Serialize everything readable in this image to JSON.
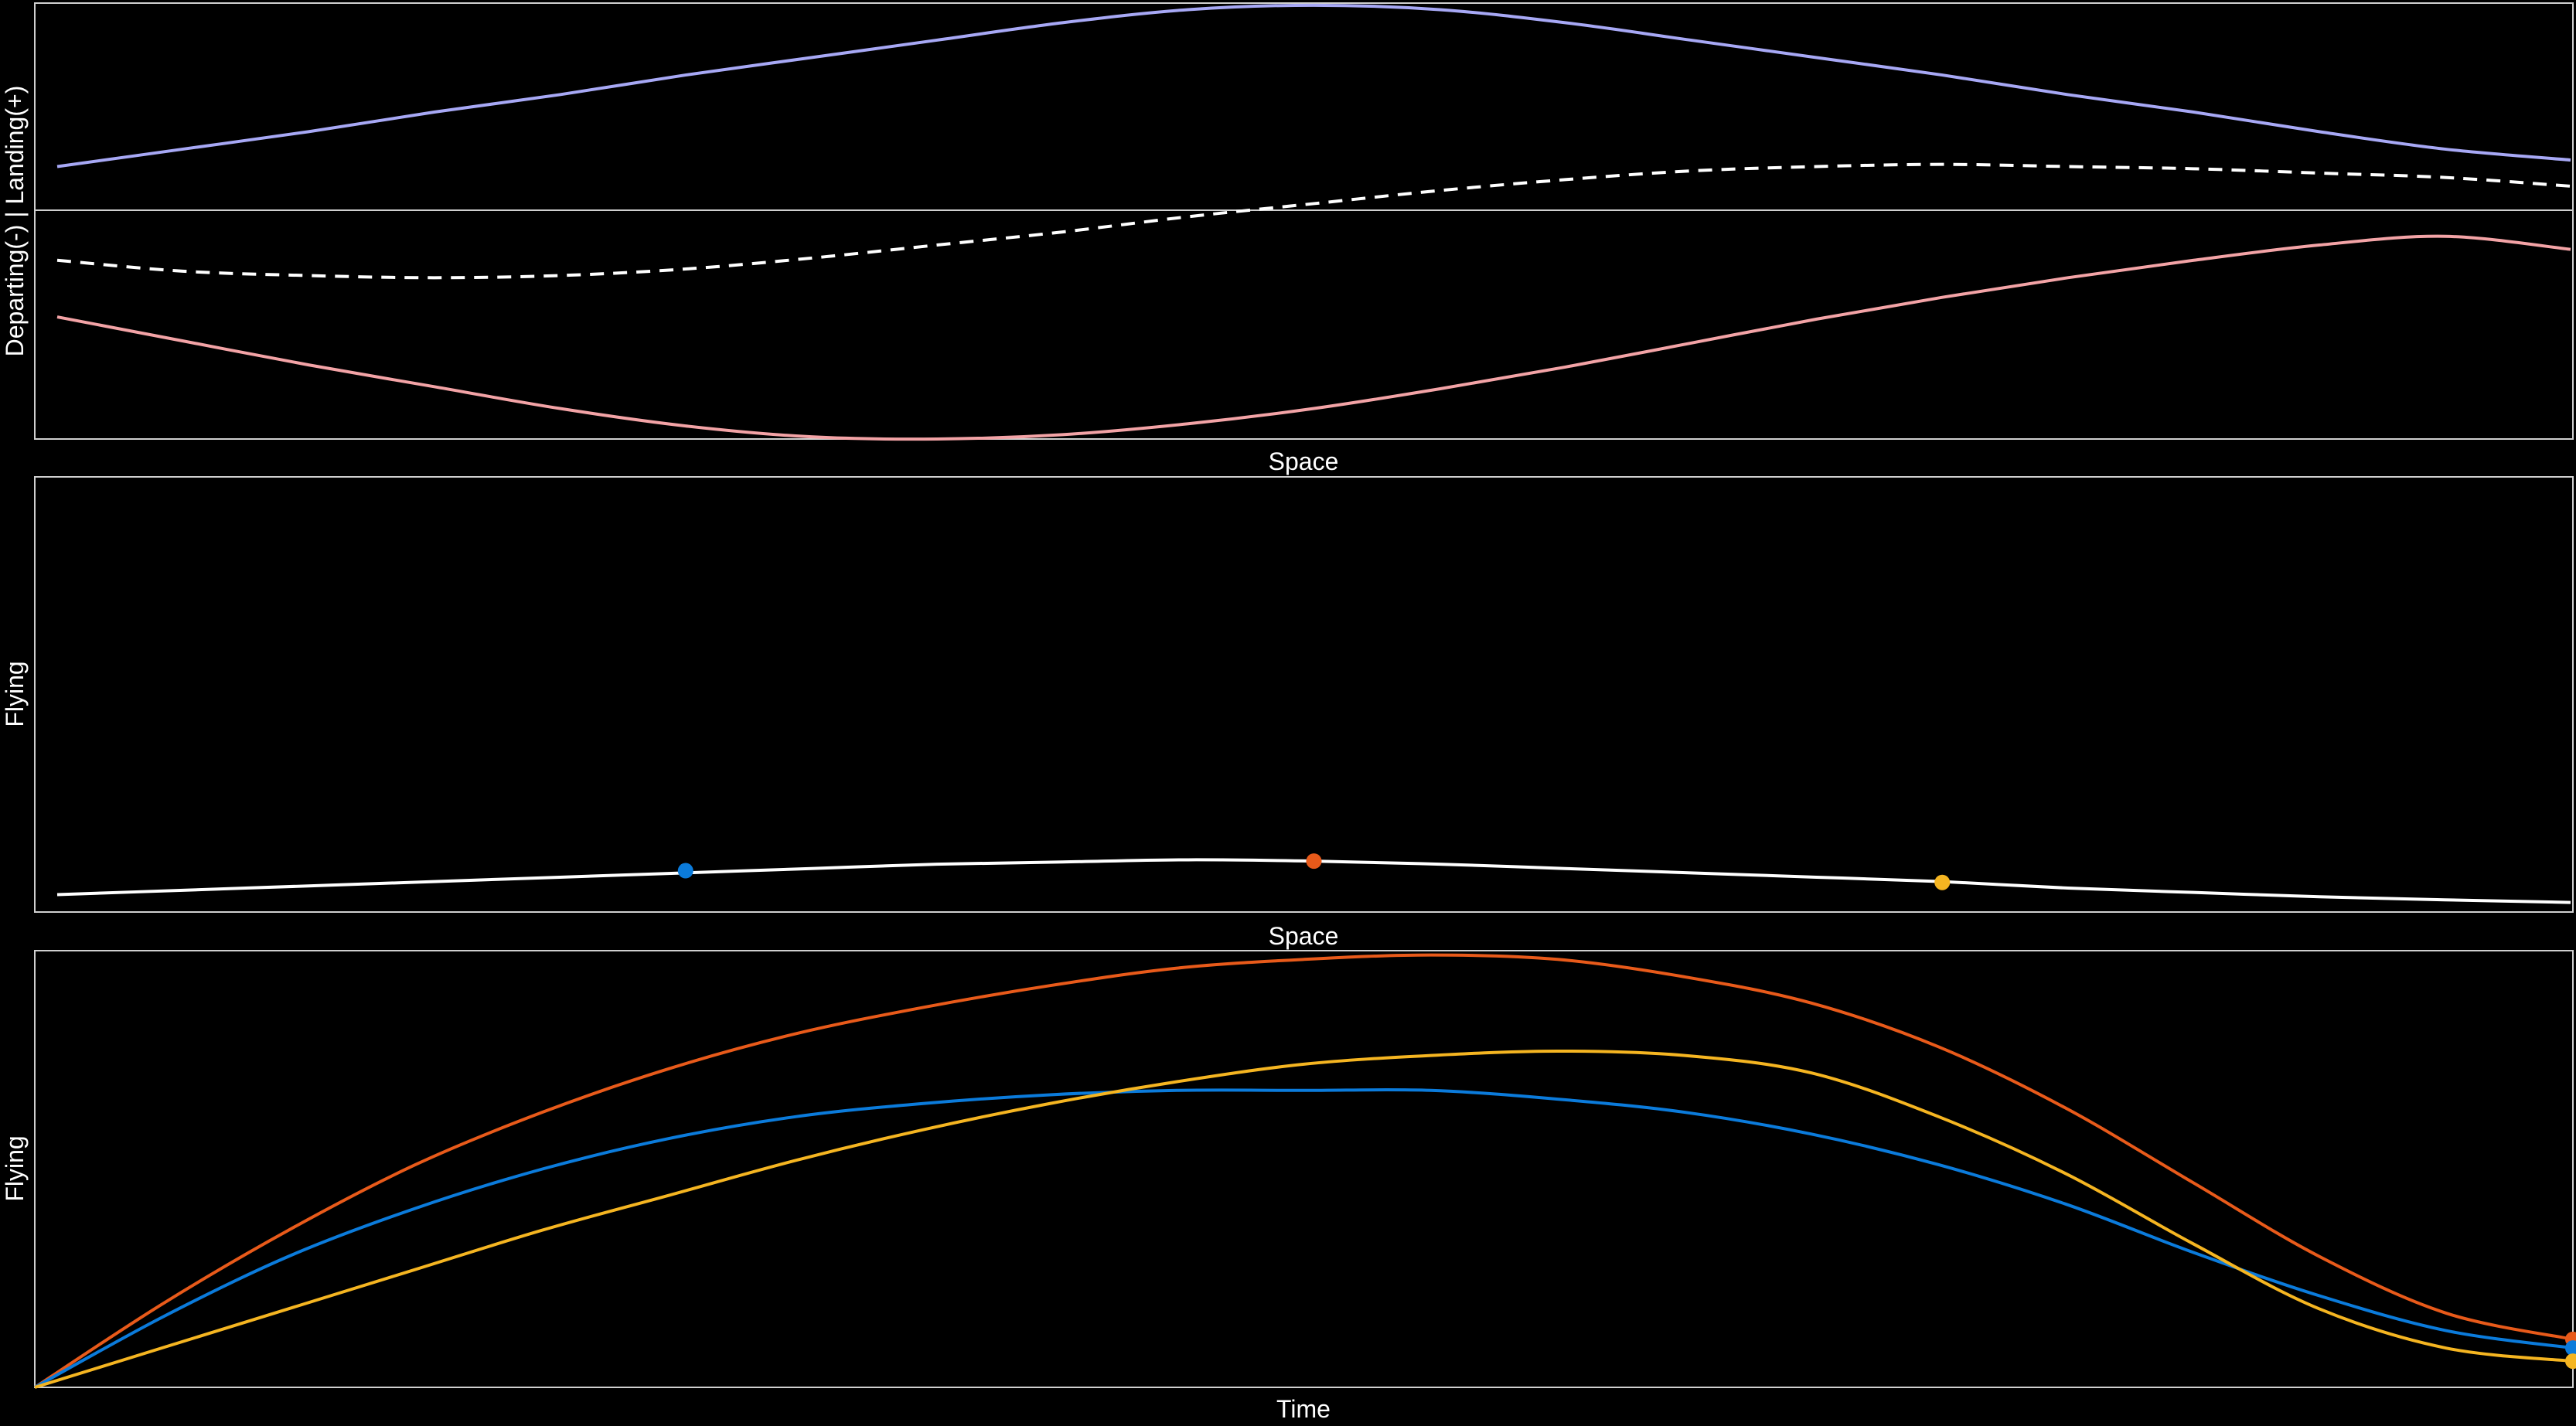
{
  "chart_data": [
    {
      "type": "line",
      "panel": "top",
      "xlabel": "Space",
      "ylabel": "Departing(-) | Landing(+)",
      "xlim": [
        0,
        1
      ],
      "ylim": [
        -1,
        1
      ],
      "zero_line": true,
      "grid": false,
      "series": [
        {
          "role": "landing",
          "color": "#a7a8f5",
          "style": "solid",
          "x": [
            0.0,
            0.05,
            0.1,
            0.15,
            0.2,
            0.25,
            0.3,
            0.35,
            0.4,
            0.45,
            0.5,
            0.55,
            0.6,
            0.65,
            0.7,
            0.75,
            0.8,
            0.85,
            0.9,
            0.95,
            1.0
          ],
          "y": [
            0.25,
            0.33,
            0.41,
            0.5,
            0.58,
            0.67,
            0.75,
            0.83,
            0.91,
            0.97,
            0.99,
            0.97,
            0.91,
            0.83,
            0.75,
            0.67,
            0.58,
            0.5,
            0.41,
            0.33,
            0.28
          ]
        },
        {
          "role": "departing",
          "color": "#f3a3a6",
          "style": "solid",
          "x": [
            0.0,
            0.05,
            0.1,
            0.15,
            0.2,
            0.25,
            0.3,
            0.35,
            0.4,
            0.45,
            0.5,
            0.55,
            0.6,
            0.65,
            0.7,
            0.75,
            0.8,
            0.85,
            0.9,
            0.95,
            1.0
          ],
          "y": [
            -0.44,
            -0.55,
            -0.66,
            -0.76,
            -0.86,
            -0.94,
            -0.99,
            -1.0,
            -0.98,
            -0.93,
            -0.86,
            -0.77,
            -0.67,
            -0.56,
            -0.45,
            -0.35,
            -0.26,
            -0.18,
            -0.11,
            -0.07,
            -0.13
          ]
        },
        {
          "role": "net",
          "color": "#ffffff",
          "style": "dashed",
          "x": [
            0.0,
            0.05,
            0.1,
            0.15,
            0.2,
            0.25,
            0.3,
            0.35,
            0.4,
            0.45,
            0.5,
            0.55,
            0.6,
            0.65,
            0.7,
            0.75,
            0.8,
            0.85,
            0.9,
            0.95,
            1.0
          ],
          "y": [
            -0.18,
            -0.23,
            -0.25,
            -0.26,
            -0.25,
            -0.22,
            -0.17,
            -0.11,
            -0.05,
            0.02,
            0.08,
            0.14,
            0.19,
            0.23,
            0.25,
            0.26,
            0.25,
            0.24,
            0.22,
            0.2,
            0.16
          ]
        }
      ]
    },
    {
      "type": "line",
      "panel": "middle",
      "xlabel": "Space",
      "ylabel": "Flying",
      "xlim": [
        0,
        1
      ],
      "ylim": [
        0,
        1
      ],
      "grid": false,
      "series": [
        {
          "role": "flying-profile",
          "color": "#ffffff",
          "style": "solid",
          "x": [
            0.0,
            0.05,
            0.1,
            0.15,
            0.2,
            0.25,
            0.3,
            0.35,
            0.4,
            0.45,
            0.5,
            0.55,
            0.6,
            0.65,
            0.7,
            0.75,
            0.8,
            0.85,
            0.9,
            0.95,
            1.0
          ],
          "y": [
            0.04,
            0.05,
            0.06,
            0.07,
            0.08,
            0.09,
            0.1,
            0.11,
            0.115,
            0.12,
            0.117,
            0.11,
            0.1,
            0.09,
            0.08,
            0.07,
            0.055,
            0.045,
            0.035,
            0.028,
            0.022
          ]
        }
      ],
      "markers": [
        {
          "x": 0.25,
          "y": 0.095,
          "color": "#0b7bdb"
        },
        {
          "x": 0.5,
          "y": 0.117,
          "color": "#e85a1a"
        },
        {
          "x": 0.75,
          "y": 0.068,
          "color": "#f5b521"
        }
      ]
    },
    {
      "type": "line",
      "panel": "bottom",
      "xlabel": "Time",
      "ylabel": "Flying",
      "xlim": [
        0,
        1
      ],
      "ylim": [
        0,
        1
      ],
      "grid": false,
      "series": [
        {
          "color": "#e85a1a",
          "style": "solid",
          "x": [
            0.0,
            0.05,
            0.1,
            0.15,
            0.2,
            0.25,
            0.3,
            0.35,
            0.4,
            0.45,
            0.5,
            0.55,
            0.6,
            0.65,
            0.7,
            0.75,
            0.8,
            0.85,
            0.9,
            0.95,
            1.0
          ],
          "y": [
            0.0,
            0.19,
            0.36,
            0.51,
            0.63,
            0.73,
            0.81,
            0.87,
            0.92,
            0.96,
            0.98,
            0.99,
            0.98,
            0.94,
            0.88,
            0.78,
            0.64,
            0.47,
            0.3,
            0.17,
            0.11
          ]
        },
        {
          "color": "#0b7bdb",
          "style": "solid",
          "x": [
            0.0,
            0.05,
            0.1,
            0.15,
            0.2,
            0.25,
            0.3,
            0.35,
            0.4,
            0.45,
            0.5,
            0.55,
            0.6,
            0.65,
            0.7,
            0.75,
            0.8,
            0.85,
            0.9,
            0.95,
            1.0
          ],
          "y": [
            0.0,
            0.16,
            0.3,
            0.41,
            0.5,
            0.57,
            0.62,
            0.65,
            0.67,
            0.68,
            0.68,
            0.68,
            0.66,
            0.63,
            0.58,
            0.51,
            0.42,
            0.31,
            0.21,
            0.13,
            0.09
          ]
        },
        {
          "color": "#f5b521",
          "style": "solid",
          "x": [
            0.0,
            0.05,
            0.1,
            0.15,
            0.2,
            0.25,
            0.3,
            0.35,
            0.4,
            0.45,
            0.5,
            0.55,
            0.6,
            0.65,
            0.7,
            0.75,
            0.8,
            0.85,
            0.9,
            0.95,
            1.0
          ],
          "y": [
            0.0,
            0.09,
            0.18,
            0.27,
            0.36,
            0.44,
            0.52,
            0.59,
            0.65,
            0.7,
            0.74,
            0.76,
            0.77,
            0.76,
            0.72,
            0.62,
            0.49,
            0.33,
            0.18,
            0.09,
            0.06
          ]
        }
      ],
      "end_markers": [
        {
          "x": 1.0,
          "y": 0.11,
          "color": "#e85a1a"
        },
        {
          "x": 1.0,
          "y": 0.09,
          "color": "#0b7bdb"
        },
        {
          "x": 1.0,
          "y": 0.06,
          "color": "#f5b521"
        }
      ]
    }
  ]
}
